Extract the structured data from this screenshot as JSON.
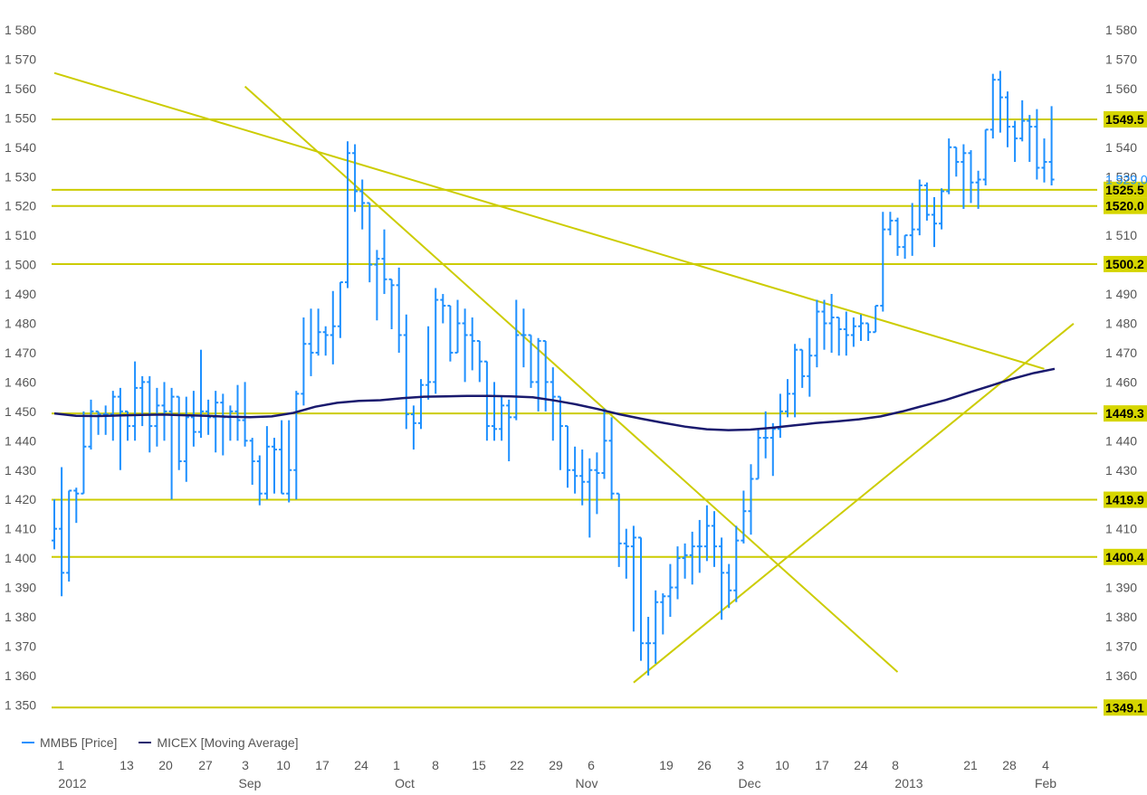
{
  "colors": {
    "price": "#1e90ff",
    "moving_average": "#1a1a6e",
    "trend": "#cccc00",
    "level_label_bg": "#d6d600",
    "last_price": "#1e90ff",
    "axis_text": "#555555"
  },
  "legend": [
    {
      "label": "ММВБ [Price]",
      "color": "#1e90ff"
    },
    {
      "label": "MICEX [Moving Average]",
      "color": "#1a1a6e"
    }
  ],
  "chart_data": {
    "type": "line",
    "y_ticks": [
      "1 350",
      "1 360",
      "1 370",
      "1 380",
      "1 390",
      "1 400",
      "1 410",
      "1 420",
      "1 430",
      "1 440",
      "1 450",
      "1 460",
      "1 470",
      "1 480",
      "1 490",
      "1 500",
      "1 510",
      "1 520",
      "1 530",
      "1 540",
      "1 550",
      "1 560",
      "1 570",
      "1 580"
    ],
    "ylim": [
      1345,
      1585
    ],
    "x_day_ticks": [
      "1",
      "13",
      "20",
      "27",
      "3",
      "10",
      "17",
      "24",
      "1",
      "8",
      "15",
      "22",
      "29",
      "6",
      "19",
      "26",
      "3",
      "10",
      "17",
      "24",
      "8",
      "21",
      "28",
      "4"
    ],
    "x_month_ticks": [
      "2012",
      "Sep",
      "Oct",
      "Nov",
      "Dec",
      "2013",
      "Feb"
    ],
    "horizontal_levels": [
      {
        "value": 1549.5,
        "label": "1549.5"
      },
      {
        "value": 1525.5,
        "label": "1525.5"
      },
      {
        "value": 1520.0,
        "label": "1520.0"
      },
      {
        "value": 1500.2,
        "label": "1500.2"
      },
      {
        "value": 1449.3,
        "label": "1449.3"
      },
      {
        "value": 1419.9,
        "label": "1419.9"
      },
      {
        "value": 1400.4,
        "label": "1400.4"
      },
      {
        "value": 1349.1,
        "label": "1349.1"
      }
    ],
    "last_price": {
      "value": 1529.0,
      "label": "1 529,0"
    },
    "series": [
      {
        "name": "ММВБ [Price]",
        "kind": "ohlc",
        "bars": [
          [
            1406,
            1420,
            1403,
            1410
          ],
          [
            1410,
            1431,
            1387,
            1395
          ],
          [
            1395,
            1423,
            1392,
            1423
          ],
          [
            1423,
            1424,
            1412,
            1422
          ],
          [
            1422,
            1450,
            1437,
            1438
          ],
          [
            1438,
            1454,
            1437,
            1450
          ],
          [
            1450,
            1450,
            1442,
            1449
          ],
          [
            1449,
            1452,
            1442,
            1449
          ],
          [
            1449,
            1457,
            1440,
            1455
          ],
          [
            1455,
            1458,
            1430,
            1450
          ],
          [
            1450,
            1448,
            1440,
            1445
          ],
          [
            1445,
            1467,
            1440,
            1458
          ],
          [
            1458,
            1462,
            1445,
            1460
          ],
          [
            1460,
            1462,
            1436,
            1445
          ],
          [
            1445,
            1458,
            1438,
            1452
          ],
          [
            1452,
            1460,
            1440,
            1450
          ],
          [
            1450,
            1458,
            1420,
            1455
          ],
          [
            1455,
            1448,
            1430,
            1433
          ],
          [
            1433,
            1455,
            1426,
            1448
          ],
          [
            1448,
            1457,
            1438,
            1443
          ],
          [
            1443,
            1471,
            1441,
            1450
          ],
          [
            1450,
            1454,
            1442,
            1448
          ],
          [
            1448,
            1457,
            1436,
            1453
          ],
          [
            1453,
            1456,
            1435,
            1448
          ],
          [
            1448,
            1452,
            1440,
            1450
          ],
          [
            1450,
            1459,
            1440,
            1447
          ],
          [
            1447,
            1460,
            1438,
            1440
          ],
          [
            1440,
            1441,
            1425,
            1433
          ],
          [
            1433,
            1435,
            1418,
            1422
          ],
          [
            1422,
            1445,
            1420,
            1438
          ],
          [
            1438,
            1441,
            1422,
            1437
          ],
          [
            1437,
            1447,
            1423,
            1422
          ],
          [
            1422,
            1447,
            1419,
            1430
          ],
          [
            1430,
            1457,
            1420,
            1456
          ],
          [
            1456,
            1482,
            1452,
            1473
          ],
          [
            1473,
            1485,
            1462,
            1470
          ],
          [
            1470,
            1485,
            1469,
            1477
          ],
          [
            1477,
            1479,
            1469,
            1476
          ],
          [
            1476,
            1491,
            1466,
            1479
          ],
          [
            1479,
            1493,
            1475,
            1494
          ],
          [
            1494,
            1542,
            1492,
            1538
          ],
          [
            1538,
            1541,
            1518,
            1525
          ],
          [
            1525,
            1529,
            1512,
            1521
          ],
          [
            1521,
            1505,
            1494,
            1500
          ],
          [
            1500,
            1505,
            1481,
            1502
          ],
          [
            1502,
            1512,
            1490,
            1495
          ],
          [
            1495,
            1494,
            1478,
            1493
          ],
          [
            1493,
            1499,
            1470,
            1476
          ],
          [
            1476,
            1483,
            1444,
            1449
          ],
          [
            1449,
            1452,
            1437,
            1446
          ],
          [
            1446,
            1461,
            1444,
            1459
          ],
          [
            1459,
            1479,
            1454,
            1460
          ],
          [
            1460,
            1492,
            1456,
            1488
          ],
          [
            1488,
            1490,
            1480,
            1486
          ],
          [
            1486,
            1486,
            1467,
            1470
          ],
          [
            1470,
            1488,
            1472,
            1480
          ],
          [
            1480,
            1485,
            1460,
            1476
          ],
          [
            1476,
            1482,
            1464,
            1474
          ],
          [
            1474,
            1469,
            1460,
            1467
          ],
          [
            1467,
            1466,
            1440,
            1445
          ],
          [
            1445,
            1460,
            1440,
            1444
          ],
          [
            1444,
            1455,
            1440,
            1452
          ],
          [
            1452,
            1454,
            1433,
            1448
          ],
          [
            1448,
            1488,
            1447,
            1476
          ],
          [
            1476,
            1485,
            1465,
            1476
          ],
          [
            1476,
            1476,
            1458,
            1460
          ],
          [
            1460,
            1475,
            1450,
            1474
          ],
          [
            1474,
            1472,
            1450,
            1460
          ],
          [
            1460,
            1465,
            1440,
            1455
          ],
          [
            1455,
            1450,
            1430,
            1445
          ],
          [
            1445,
            1444,
            1424,
            1430
          ],
          [
            1430,
            1438,
            1422,
            1428
          ],
          [
            1428,
            1437,
            1418,
            1426
          ],
          [
            1426,
            1434,
            1407,
            1430
          ],
          [
            1430,
            1436,
            1415,
            1429
          ],
          [
            1429,
            1451,
            1427,
            1440
          ],
          [
            1440,
            1448,
            1420,
            1422
          ],
          [
            1422,
            1414,
            1397,
            1405
          ],
          [
            1405,
            1410,
            1393,
            1404
          ],
          [
            1404,
            1411,
            1375,
            1407
          ],
          [
            1407,
            1402,
            1365,
            1371
          ],
          [
            1371,
            1380,
            1360,
            1371
          ],
          [
            1371,
            1389,
            1364,
            1385
          ],
          [
            1385,
            1388,
            1374,
            1387
          ],
          [
            1387,
            1398,
            1380,
            1390
          ],
          [
            1390,
            1404,
            1386,
            1400
          ],
          [
            1400,
            1405,
            1393,
            1401
          ],
          [
            1401,
            1409,
            1391,
            1404
          ],
          [
            1404,
            1413,
            1395,
            1404
          ],
          [
            1404,
            1418,
            1399,
            1411
          ],
          [
            1411,
            1416,
            1397,
            1404
          ],
          [
            1404,
            1407,
            1379,
            1395
          ],
          [
            1395,
            1398,
            1383,
            1389
          ],
          [
            1389,
            1411,
            1385,
            1406
          ],
          [
            1406,
            1423,
            1405,
            1416
          ],
          [
            1416,
            1432,
            1408,
            1427
          ],
          [
            1427,
            1444,
            1428,
            1441
          ],
          [
            1441,
            1450,
            1434,
            1441
          ],
          [
            1441,
            1446,
            1428,
            1444
          ],
          [
            1444,
            1456,
            1441,
            1450
          ],
          [
            1450,
            1461,
            1448,
            1456
          ],
          [
            1456,
            1473,
            1448,
            1471
          ],
          [
            1471,
            1470,
            1458,
            1462
          ],
          [
            1462,
            1475,
            1455,
            1469
          ],
          [
            1469,
            1488,
            1465,
            1484
          ],
          [
            1484,
            1488,
            1471,
            1480
          ],
          [
            1480,
            1490,
            1470,
            1482
          ],
          [
            1482,
            1480,
            1469,
            1478
          ],
          [
            1478,
            1484,
            1469,
            1476
          ],
          [
            1476,
            1482,
            1472,
            1479
          ],
          [
            1479,
            1483,
            1474,
            1480
          ],
          [
            1480,
            1480,
            1474,
            1477
          ],
          [
            1477,
            1477,
            1486,
            1486
          ],
          [
            1486,
            1518,
            1484,
            1512
          ],
          [
            1512,
            1518,
            1510,
            1515
          ],
          [
            1515,
            1516,
            1503,
            1506
          ],
          [
            1506,
            1510,
            1502,
            1510
          ],
          [
            1510,
            1521,
            1503,
            1512
          ],
          [
            1512,
            1529,
            1510,
            1527
          ],
          [
            1527,
            1528,
            1515,
            1517
          ],
          [
            1517,
            1523,
            1506,
            1514
          ],
          [
            1514,
            1526,
            1512,
            1525
          ],
          [
            1525,
            1543,
            1524,
            1540
          ],
          [
            1540,
            1538,
            1530,
            1535
          ],
          [
            1535,
            1541,
            1519,
            1538
          ],
          [
            1538,
            1539,
            1521,
            1528
          ],
          [
            1528,
            1532,
            1519,
            1529
          ],
          [
            1529,
            1536,
            1527,
            1546
          ],
          [
            1546,
            1565,
            1543,
            1563
          ],
          [
            1563,
            1566,
            1545,
            1557
          ],
          [
            1557,
            1559,
            1540,
            1547
          ],
          [
            1547,
            1549,
            1535,
            1543
          ],
          [
            1543,
            1556,
            1542,
            1549
          ],
          [
            1549,
            1551,
            1535,
            1547
          ],
          [
            1547,
            1553,
            1529,
            1533
          ],
          [
            1533,
            1543,
            1528,
            1535
          ],
          [
            1535,
            1554,
            1527,
            1529
          ]
        ]
      },
      {
        "name": "MICEX [Moving Average]",
        "kind": "line",
        "values": [
          1449.3,
          1448.5,
          1448.4,
          1448.6,
          1448.8,
          1448.9,
          1448.7,
          1448.5,
          1448.2,
          1448.0,
          1448.3,
          1449.5,
          1451.6,
          1452.9,
          1453.6,
          1453.8,
          1454.5,
          1455.0,
          1455.1,
          1455.3,
          1455.3,
          1455.1,
          1454.8,
          1453.7,
          1452.4,
          1450.8,
          1449.0,
          1447.5,
          1446.1,
          1444.8,
          1443.9,
          1443.6,
          1443.8,
          1444.4,
          1445.2,
          1446.0,
          1446.6,
          1447.3,
          1448.3,
          1450.0,
          1452.0,
          1453.9,
          1456.3,
          1458.6,
          1461.0,
          1463.0,
          1464.5
        ]
      }
    ],
    "trendlines": [
      {
        "from": [
          0,
          1565.3
        ],
        "to": [
          135,
          1464.5
        ]
      },
      {
        "from": [
          26,
          1560.7
        ],
        "to": [
          115,
          1361.2
        ]
      },
      {
        "from": [
          79,
          1357.6
        ],
        "to": [
          139,
          1479.9
        ]
      }
    ]
  }
}
